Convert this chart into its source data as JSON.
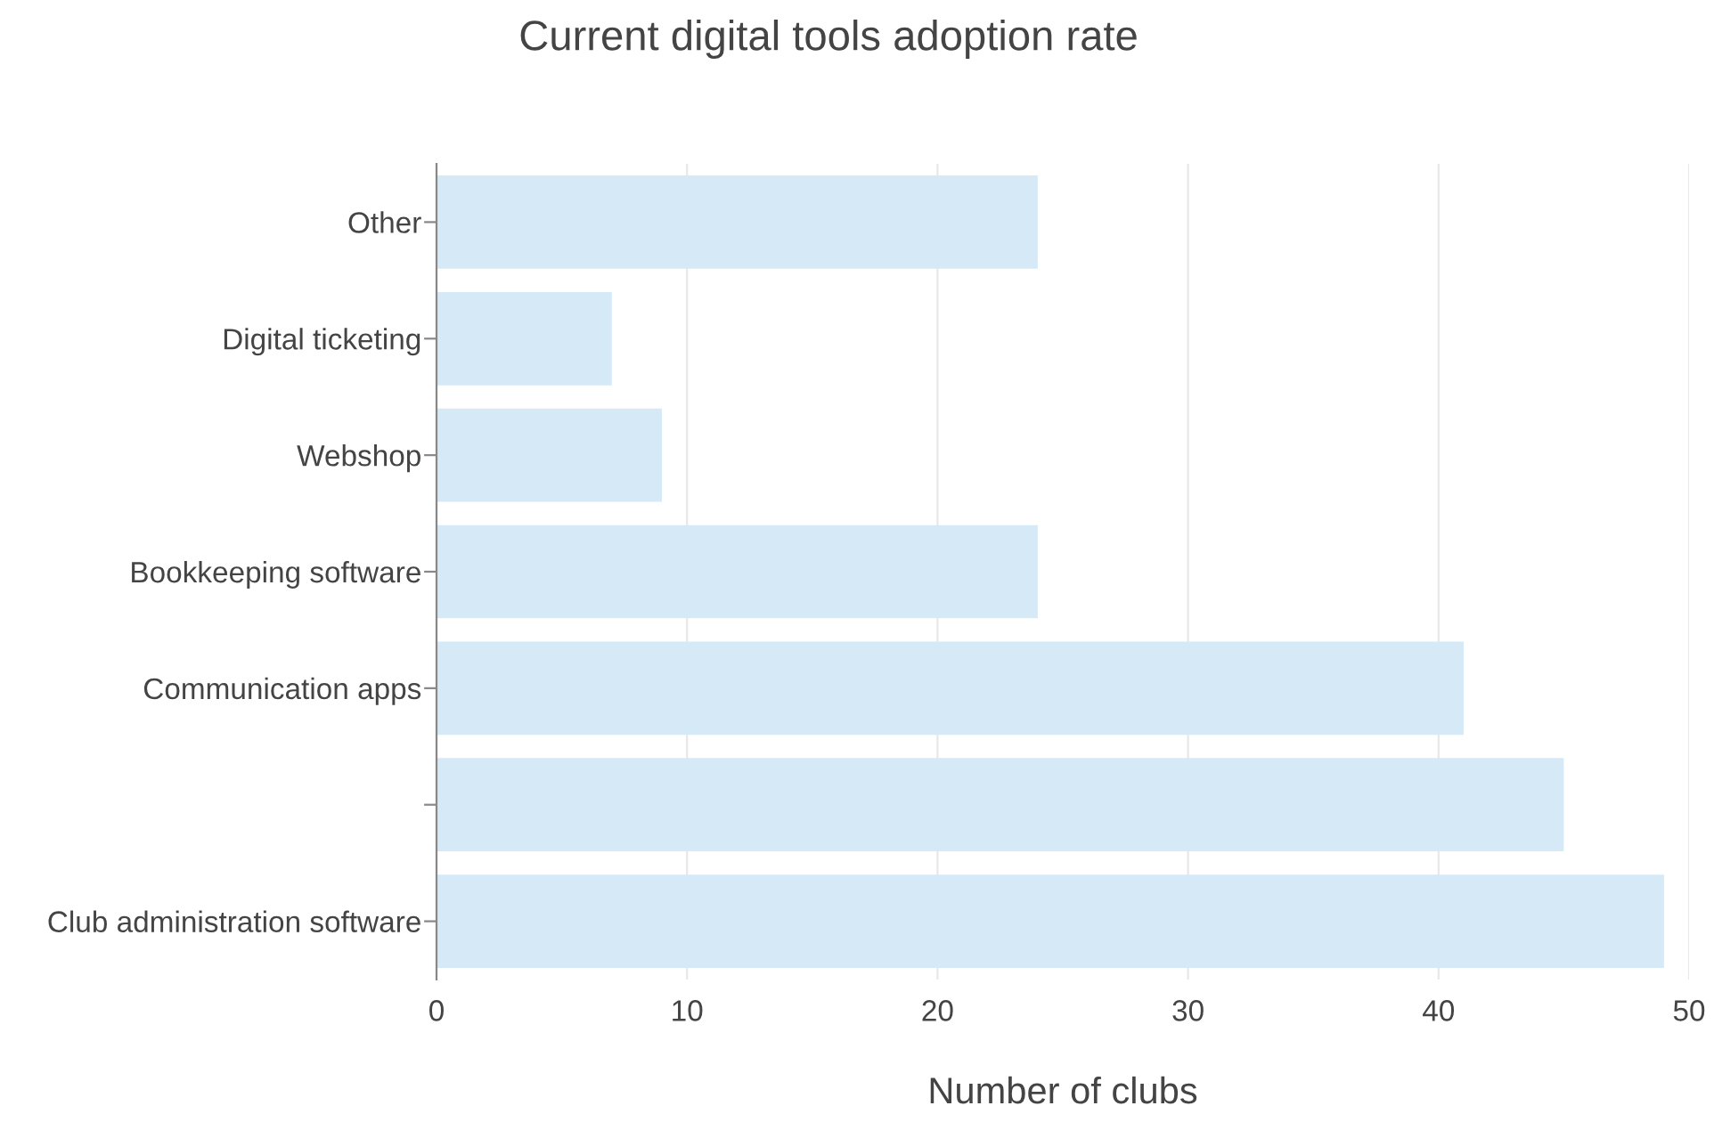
{
  "chart_data": {
    "type": "bar",
    "orientation": "horizontal",
    "title": "Current digital tools adoption rate",
    "xlabel": "Number of clubs",
    "categories": [
      "Other",
      "Digital ticketing",
      "Webshop",
      "Bookkeeping software",
      "Communication apps",
      null,
      "Club administration software"
    ],
    "values": [
      24,
      7,
      9,
      24,
      41,
      45,
      49
    ],
    "color": "#d6e9f7",
    "xlim": [
      0,
      50
    ],
    "xticks": [
      0,
      10,
      20,
      30,
      40,
      50
    ],
    "grid": "x"
  }
}
